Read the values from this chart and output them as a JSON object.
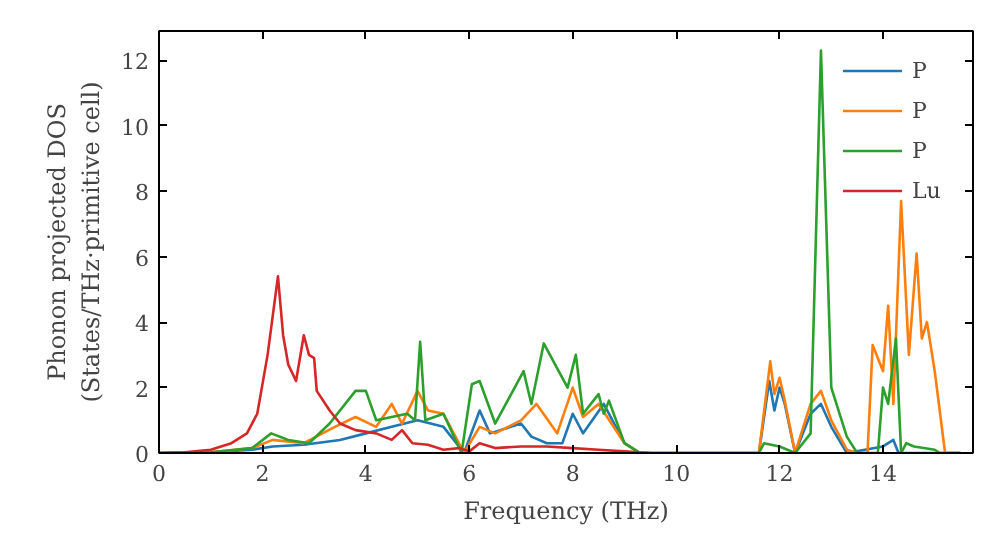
{
  "chart_data": {
    "type": "line",
    "xlabel": "Frequency (THz)",
    "ylabel": "Phonon projected DOS\n(States/THz·primitive cell)",
    "xlim": [
      0,
      15.74
    ],
    "ylim": [
      0,
      12.9
    ],
    "xticks": [
      0,
      2,
      4,
      6,
      8,
      10,
      12,
      14
    ],
    "yticks": [
      0,
      2,
      4,
      6,
      8,
      10,
      12
    ],
    "grid": false,
    "legend": "top right",
    "line_style": "solid",
    "series": [
      {
        "name": "P",
        "color": "#1f77b4",
        "x": [
          0,
          1,
          1.8,
          2.2,
          2.8,
          3.5,
          4.0,
          4.5,
          5.0,
          5.5,
          5.9,
          6.2,
          6.4,
          7.0,
          7.2,
          7.5,
          7.8,
          8.0,
          8.2,
          8.6,
          9.0,
          9.3,
          11.6,
          11.8,
          11.9,
          12.0,
          12.1,
          12.3,
          12.6,
          12.8,
          13.0,
          13.3,
          14.0,
          14.2,
          14.3,
          15.0,
          15.5
        ],
        "values": [
          0,
          0.02,
          0.1,
          0.2,
          0.25,
          0.4,
          0.6,
          0.8,
          1.0,
          0.8,
          0,
          1.3,
          0.6,
          0.9,
          0.5,
          0.3,
          0.3,
          1.2,
          0.6,
          1.5,
          0.3,
          0,
          0,
          2.2,
          1.3,
          2.0,
          1.5,
          0,
          1.2,
          1.5,
          0.8,
          0,
          0.2,
          0.4,
          0,
          0,
          0
        ]
      },
      {
        "name": "P",
        "color": "#ff7f0e",
        "x": [
          0,
          1,
          1.8,
          2.2,
          2.8,
          3.4,
          3.8,
          4.2,
          4.5,
          4.7,
          5.0,
          5.2,
          5.5,
          5.9,
          6.2,
          6.5,
          7.0,
          7.3,
          7.7,
          8.0,
          8.2,
          8.5,
          9.0,
          9.3,
          11.6,
          11.82,
          11.9,
          12.0,
          12.1,
          12.3,
          12.6,
          12.8,
          13.0,
          13.3,
          13.5,
          13.7,
          13.8,
          14.0,
          14.1,
          14.2,
          14.35,
          14.5,
          14.65,
          14.75,
          14.85,
          15.0,
          15.2,
          15.5
        ],
        "values": [
          0,
          0.02,
          0.15,
          0.4,
          0.3,
          0.8,
          1.1,
          0.8,
          1.5,
          0.9,
          1.9,
          1.3,
          1.2,
          0,
          0.8,
          0.6,
          1.0,
          1.5,
          0.6,
          2.0,
          1.1,
          1.5,
          0.3,
          0,
          0,
          2.8,
          1.8,
          2.3,
          1.6,
          0,
          1.5,
          1.9,
          1.0,
          0.1,
          0,
          0,
          3.3,
          2.5,
          4.5,
          1.5,
          7.7,
          3.0,
          6.1,
          3.5,
          4.0,
          2.5,
          0,
          0
        ]
      },
      {
        "name": "P",
        "color": "#2ca02c",
        "x": [
          0,
          1,
          1.8,
          2.17,
          2.5,
          2.9,
          3.3,
          3.8,
          4.0,
          4.2,
          4.5,
          4.8,
          4.95,
          5.05,
          5.15,
          5.5,
          5.85,
          6.05,
          6.2,
          6.5,
          7.05,
          7.2,
          7.44,
          7.9,
          8.06,
          8.2,
          8.5,
          8.6,
          8.7,
          9.0,
          9.3,
          11.6,
          11.7,
          12.0,
          12.3,
          12.6,
          12.8,
          13.0,
          13.3,
          13.5,
          13.9,
          14.0,
          14.1,
          14.25,
          14.35,
          14.45,
          14.6,
          15.0,
          15.1,
          15.5
        ],
        "values": [
          0,
          0.02,
          0.15,
          0.6,
          0.4,
          0.3,
          0.9,
          1.9,
          1.9,
          1.0,
          1.1,
          1.2,
          1.0,
          3.4,
          1.0,
          1.2,
          0,
          2.1,
          2.2,
          0.9,
          2.5,
          1.5,
          3.35,
          2.0,
          3.0,
          1.2,
          1.8,
          1.2,
          1.6,
          0.3,
          0,
          0,
          0.3,
          0.2,
          0,
          0.6,
          12.3,
          2.0,
          0.5,
          0,
          0,
          2.0,
          1.5,
          3.5,
          0,
          0.3,
          0.2,
          0.1,
          0,
          0
        ]
      },
      {
        "name": "Lu",
        "color": "#d62728",
        "x": [
          0,
          0.5,
          1,
          1.4,
          1.7,
          1.9,
          2.1,
          2.3,
          2.4,
          2.5,
          2.65,
          2.8,
          2.9,
          3.0,
          3.05,
          3.3,
          3.5,
          3.8,
          4.2,
          4.5,
          4.7,
          4.9,
          5.2,
          5.5,
          5.8,
          6.0,
          6.2,
          6.5,
          7.0,
          7.5,
          8.0,
          8.5,
          9.0,
          9.5
        ],
        "values": [
          0,
          0.02,
          0.1,
          0.3,
          0.6,
          1.2,
          3.0,
          5.4,
          3.6,
          2.7,
          2.2,
          3.6,
          3.0,
          2.9,
          1.9,
          1.3,
          0.9,
          0.7,
          0.6,
          0.4,
          0.7,
          0.3,
          0.25,
          0.1,
          0.15,
          0.05,
          0.3,
          0.15,
          0.2,
          0.2,
          0.15,
          0.1,
          0.05,
          0
        ]
      }
    ]
  }
}
